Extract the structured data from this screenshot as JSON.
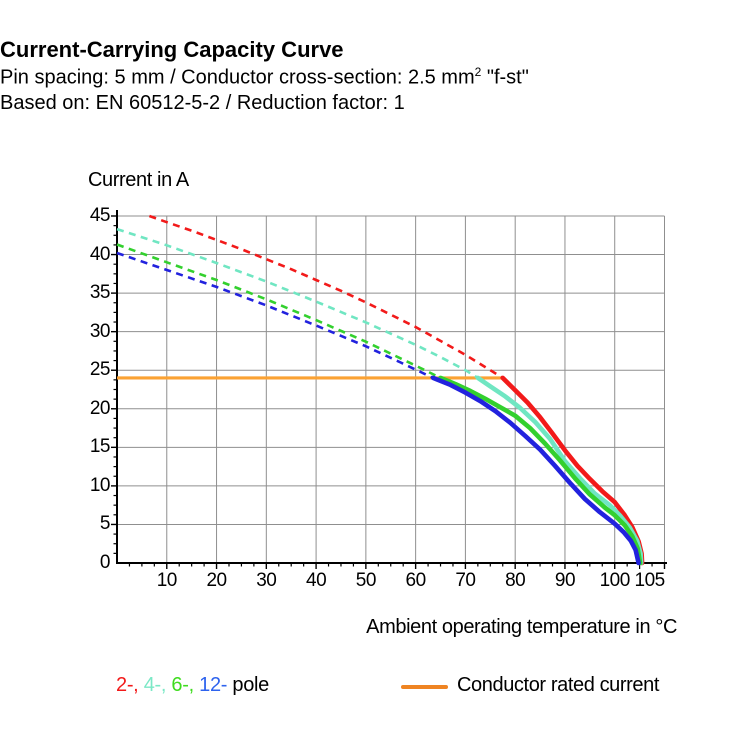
{
  "header": {
    "title": "Current-Carrying Capacity Curve",
    "subtitle1_pre": "Pin spacing: 5 mm / Conductor cross-section: 2.5 mm",
    "subtitle1_sup": "2",
    "subtitle1_post": " \"f-st\"",
    "subtitle2": "Based on: EN 60512-5-2 / Reduction factor: 1"
  },
  "chart_data": {
    "type": "line",
    "title": "Current-Carrying Capacity Curve",
    "xlabel": "Ambient operating temperature in °C",
    "ylabel": "Current in A",
    "xlim": [
      0,
      110
    ],
    "ylim": [
      0,
      45
    ],
    "grid": "on",
    "grid_color": "#8F8F8F",
    "axis_color": "#000000",
    "x_gridline_step": 10,
    "y_gridline_step": 5,
    "x_minor_tick_step": 2.5,
    "y_minor_tick_step": 1.25,
    "x_ticks": [
      {
        "value": 10,
        "label": "10",
        "dx": 0
      },
      {
        "value": 20,
        "label": "20",
        "dx": 0
      },
      {
        "value": 30,
        "label": "30",
        "dx": 0
      },
      {
        "value": 40,
        "label": "40",
        "dx": 0
      },
      {
        "value": 50,
        "label": "50",
        "dx": 0
      },
      {
        "value": 60,
        "label": "60",
        "dx": 0
      },
      {
        "value": 70,
        "label": "70",
        "dx": 0
      },
      {
        "value": 80,
        "label": "80",
        "dx": 0
      },
      {
        "value": 90,
        "label": "90",
        "dx": 0
      },
      {
        "value": 100,
        "label": "100",
        "dx": 0
      },
      {
        "value": 105,
        "label": "105",
        "dx": 10
      }
    ],
    "y_ticks": [
      {
        "value": 0,
        "label": "0"
      },
      {
        "value": 5,
        "label": "5"
      },
      {
        "value": 10,
        "label": "10"
      },
      {
        "value": 15,
        "label": "15"
      },
      {
        "value": 20,
        "label": "20"
      },
      {
        "value": 25,
        "label": "25"
      },
      {
        "value": 30,
        "label": "30"
      },
      {
        "value": 35,
        "label": "35"
      },
      {
        "value": 40,
        "label": "40"
      },
      {
        "value": 45,
        "label": "45"
      }
    ],
    "rated_current": {
      "value": 24,
      "x_start": 0,
      "x_end": 77.5,
      "label": "Conductor rated current",
      "color": "#FBA233"
    },
    "series": [
      {
        "name": "2-pole",
        "color": "#F21A1A",
        "dashed": [
          [
            6.5,
            45
          ],
          [
            10,
            44.2
          ],
          [
            15,
            43.1
          ],
          [
            20,
            41.9
          ],
          [
            25,
            40.7
          ],
          [
            30,
            39.4
          ],
          [
            35,
            38.1
          ],
          [
            40,
            36.7
          ],
          [
            45,
            35.3
          ],
          [
            50,
            33.8
          ],
          [
            55,
            32.2
          ],
          [
            60,
            30.6
          ],
          [
            65,
            28.8
          ],
          [
            70,
            27.0
          ],
          [
            74,
            25.4
          ],
          [
            77.5,
            24
          ]
        ],
        "solid": [
          [
            77.5,
            24
          ],
          [
            80,
            22.4
          ],
          [
            82.5,
            20.8
          ],
          [
            85,
            18.9
          ],
          [
            87.5,
            16.8
          ],
          [
            90,
            14.6
          ],
          [
            92.5,
            12.6
          ],
          [
            95,
            10.9
          ],
          [
            97.5,
            9.3
          ],
          [
            100,
            7.9
          ],
          [
            102,
            6.2
          ],
          [
            103.5,
            4.7
          ],
          [
            104.8,
            2.8
          ],
          [
            105.4,
            1.2
          ],
          [
            105.5,
            0
          ]
        ]
      },
      {
        "name": "4-pole",
        "color": "#70E6C2",
        "dashed": [
          [
            0,
            43.3
          ],
          [
            10,
            41.2
          ],
          [
            20,
            38.9
          ],
          [
            30,
            36.5
          ],
          [
            40,
            33.9
          ],
          [
            50,
            31.2
          ],
          [
            60,
            28.3
          ],
          [
            65,
            26.7
          ],
          [
            70,
            25.0
          ],
          [
            72.5,
            24
          ]
        ],
        "solid": [
          [
            72.5,
            24
          ],
          [
            75,
            22.9
          ],
          [
            78,
            21.6
          ],
          [
            81,
            20.1
          ],
          [
            84,
            18.3
          ],
          [
            87,
            16.1
          ],
          [
            90,
            13.2
          ],
          [
            93,
            11.0
          ],
          [
            96,
            9.0
          ],
          [
            99,
            7.5
          ],
          [
            101,
            6.2
          ],
          [
            103,
            4.6
          ],
          [
            104.5,
            2.9
          ],
          [
            105.2,
            1.2
          ],
          [
            105.3,
            0
          ]
        ]
      },
      {
        "name": "6-pole",
        "color": "#33D02E",
        "dashed": [
          [
            0,
            41.3
          ],
          [
            10,
            39.0
          ],
          [
            20,
            36.7
          ],
          [
            30,
            34.2
          ],
          [
            40,
            31.5
          ],
          [
            50,
            28.7
          ],
          [
            60,
            25.6
          ],
          [
            65,
            24
          ]
        ],
        "solid": [
          [
            65,
            24
          ],
          [
            68,
            23.2
          ],
          [
            71,
            22.3
          ],
          [
            74,
            21.3
          ],
          [
            77,
            20.2
          ],
          [
            80,
            19.1
          ],
          [
            83,
            17.5
          ],
          [
            86,
            15.5
          ],
          [
            89,
            13.3
          ],
          [
            92,
            11.0
          ],
          [
            95,
            8.9
          ],
          [
            98,
            7.2
          ],
          [
            100,
            6.2
          ],
          [
            102,
            4.9
          ],
          [
            103.5,
            3.5
          ],
          [
            104.6,
            1.9
          ],
          [
            105.1,
            0
          ]
        ]
      },
      {
        "name": "12-pole",
        "color": "#2222DE",
        "dashed": [
          [
            0,
            40.2
          ],
          [
            10,
            38.0
          ],
          [
            20,
            35.8
          ],
          [
            30,
            33.4
          ],
          [
            40,
            30.8
          ],
          [
            50,
            28.1
          ],
          [
            57,
            26.0
          ],
          [
            63.5,
            24
          ]
        ],
        "solid": [
          [
            63.5,
            24
          ],
          [
            67,
            23.1
          ],
          [
            70,
            22.1
          ],
          [
            73,
            21.0
          ],
          [
            76,
            19.7
          ],
          [
            79,
            18.2
          ],
          [
            82,
            16.5
          ],
          [
            85,
            14.7
          ],
          [
            88,
            12.6
          ],
          [
            91,
            10.4
          ],
          [
            94,
            8.3
          ],
          [
            97,
            6.6
          ],
          [
            100,
            5.1
          ],
          [
            101.8,
            4.0
          ],
          [
            103.2,
            2.9
          ],
          [
            104.2,
            1.7
          ],
          [
            104.8,
            0
          ]
        ]
      }
    ]
  },
  "legend": {
    "pole_segments": [
      {
        "text": "2-,",
        "color": "#F21A1A"
      },
      {
        "text": " 4-,",
        "color": "#7BE8C6"
      },
      {
        "text": " 6-,",
        "color": "#3FDC1F"
      },
      {
        "text": " 12-",
        "color": "#2E63EE"
      },
      {
        "text": " pole",
        "color": "#000000"
      }
    ],
    "rated_label": "Conductor rated current",
    "rated_swatch_color": "#EF8422"
  }
}
